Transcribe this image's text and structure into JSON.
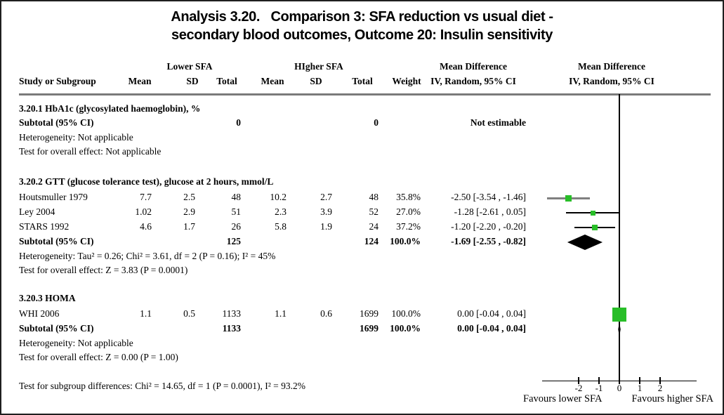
{
  "title": {
    "line1": "Analysis 3.20.   Comparison 3: SFA reduction vs usual diet -",
    "line2": "secondary blood outcomes, Outcome 20: Insulin sensitivity"
  },
  "header": {
    "group1": "Lower SFA",
    "group2": "HIgher SFA",
    "study": "Study or Subgroup",
    "mean": "Mean",
    "sd": "SD",
    "total": "Total",
    "weight": "Weight",
    "md_line1": "Mean Difference",
    "md_line2": "IV, Random, 95% CI"
  },
  "sections": [
    {
      "heading": "3.20.1 HbA1c (glycosylated haemoglobin), %",
      "subtotal": {
        "label": "Subtotal (95% CI)",
        "total_lower": "0",
        "total_higher": "0",
        "weight": "",
        "ci_text": "Not estimable"
      },
      "heterogeneity": "Heterogeneity: Not applicable",
      "overall_effect": "Test for overall effect: Not applicable"
    },
    {
      "heading": "3.20.2 GTT (glucose tolerance test), glucose at 2 hours, mmol/L",
      "studies": [
        {
          "label": "Houtsmuller 1979",
          "mean_lower": "7.7",
          "sd_lower": "2.5",
          "total_lower": "48",
          "mean_higher": "10.2",
          "sd_higher": "2.7",
          "total_higher": "48",
          "weight": "35.8%",
          "ci_text": "-2.50 [-3.54 , -1.46]"
        },
        {
          "label": "Ley 2004",
          "mean_lower": "1.02",
          "sd_lower": "2.9",
          "total_lower": "51",
          "mean_higher": "2.3",
          "sd_higher": "3.9",
          "total_higher": "52",
          "weight": "27.0%",
          "ci_text": "-1.28 [-2.61 , 0.05]"
        },
        {
          "label": "STARS 1992",
          "mean_lower": "4.6",
          "sd_lower": "1.7",
          "total_lower": "26",
          "mean_higher": "5.8",
          "sd_higher": "1.9",
          "total_higher": "24",
          "weight": "37.2%",
          "ci_text": "-1.20 [-2.20 , -0.20]"
        }
      ],
      "subtotal": {
        "label": "Subtotal (95% CI)",
        "total_lower": "125",
        "total_higher": "124",
        "weight": "100.0%",
        "ci_text": "-1.69 [-2.55 , -0.82]"
      },
      "heterogeneity": "Heterogeneity: Tau² = 0.26; Chi² = 3.61, df = 2 (P = 0.16); I² = 45%",
      "overall_effect": "Test for overall effect: Z = 3.83 (P = 0.0001)"
    },
    {
      "heading": "3.20.3 HOMA",
      "studies": [
        {
          "label": "WHI 2006",
          "mean_lower": "1.1",
          "sd_lower": "0.5",
          "total_lower": "1133",
          "mean_higher": "1.1",
          "sd_higher": "0.6",
          "total_higher": "1699",
          "weight": "100.0%",
          "ci_text": "0.00 [-0.04 , 0.04]"
        }
      ],
      "subtotal": {
        "label": "Subtotal (95% CI)",
        "total_lower": "1133",
        "total_higher": "1699",
        "weight": "100.0%",
        "ci_text": "0.00 [-0.04 , 0.04]"
      },
      "heterogeneity": "Heterogeneity: Not applicable",
      "overall_effect": "Test for overall effect: Z = 0.00 (P = 1.00)"
    }
  ],
  "footer": {
    "subgroup_test": "Test for subgroup differences: Chi² = 14.65, df = 1 (P = 0.0001), I² = 93.2%",
    "favours_left": "Favours lower SFA",
    "favours_right": "Favours higher SFA"
  },
  "colors": {
    "marker": "#28be28",
    "diamond": "#000000",
    "ci_line": "#000000",
    "ci_line_thick": "#808080",
    "separator": "#7a7a7a"
  },
  "chart_data": {
    "type": "forest",
    "title": "Analysis 3.20. Comparison 3: SFA reduction vs usual diet - secondary blood outcomes, Outcome 20: Insulin sensitivity",
    "effect_measure": "Mean Difference, IV, Random, 95% CI",
    "x_axis": {
      "ticks": [
        -2,
        -1,
        0,
        1,
        2
      ],
      "range": [
        -3.8,
        3.8
      ],
      "favours_left": "Favours lower SFA",
      "favours_right": "Favours higher SFA"
    },
    "subgroups": [
      {
        "name": "HbA1c (glycosylated haemoglobin), %",
        "studies": [],
        "subtotal": {
          "estimate": null,
          "ci_low": null,
          "ci_high": null,
          "note": "Not estimable"
        }
      },
      {
        "name": "GTT (glucose tolerance test), glucose at 2 hours, mmol/L",
        "studies": [
          {
            "study": "Houtsmuller 1979",
            "estimate": -2.5,
            "ci_low": -3.54,
            "ci_high": -1.46,
            "weight_pct": 35.8
          },
          {
            "study": "Ley 2004",
            "estimate": -1.28,
            "ci_low": -2.61,
            "ci_high": 0.05,
            "weight_pct": 27.0
          },
          {
            "study": "STARS 1992",
            "estimate": -1.2,
            "ci_low": -2.2,
            "ci_high": -0.2,
            "weight_pct": 37.2
          }
        ],
        "subtotal": {
          "estimate": -1.69,
          "ci_low": -2.55,
          "ci_high": -0.82
        }
      },
      {
        "name": "HOMA",
        "studies": [
          {
            "study": "WHI 2006",
            "estimate": 0.0,
            "ci_low": -0.04,
            "ci_high": 0.04,
            "weight_pct": 100.0
          }
        ],
        "subtotal": {
          "estimate": 0.0,
          "ci_low": -0.04,
          "ci_high": 0.04
        }
      }
    ]
  }
}
